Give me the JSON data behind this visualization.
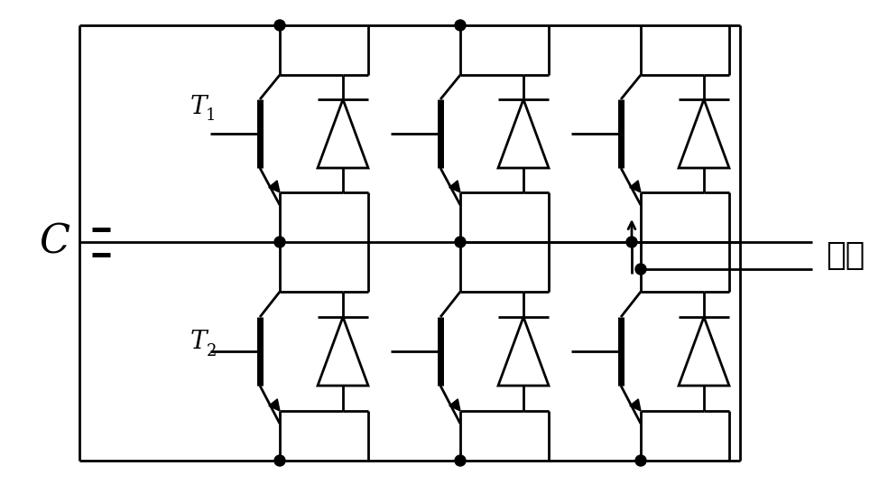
{
  "bg_color": "#ffffff",
  "line_color": "#000000",
  "lw": 2.0,
  "capacitor_label": "C",
  "ac_label": "交流",
  "T1_label": "T",
  "T1_sub": "1",
  "T2_label": "T",
  "T2_sub": "2",
  "figsize": [
    9.74,
    5.37
  ],
  "dpi": 100
}
